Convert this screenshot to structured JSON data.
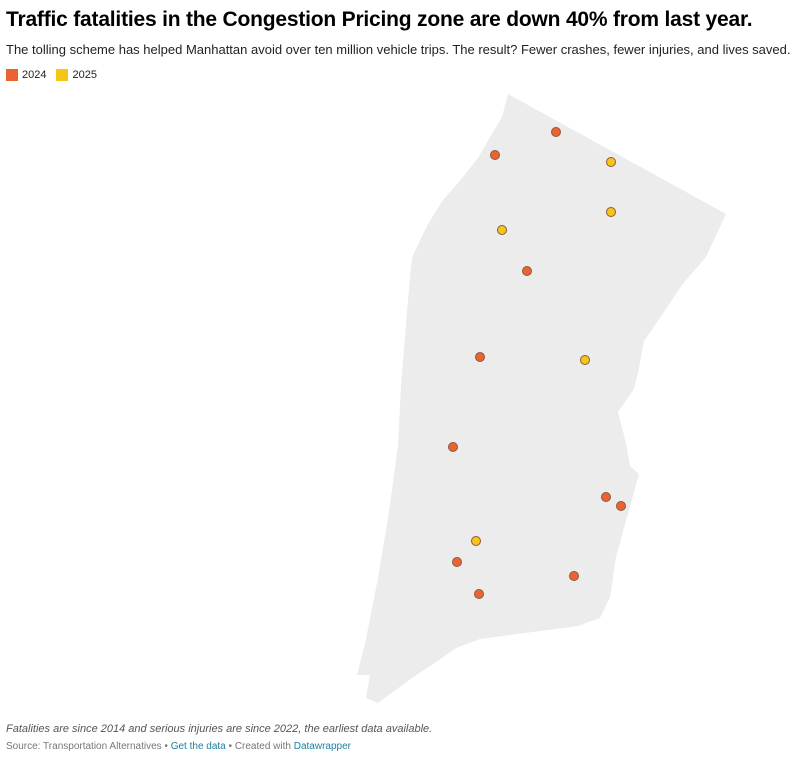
{
  "title": "Traffic fatalities in the Congestion Pricing zone are down 40% from last year.",
  "subtitle": "The tolling scheme has helped Manhattan avoid over ten million vehicle trips. The result? Fewer crashes, fewer injuries, and lives saved.",
  "legend": [
    {
      "label": "2024",
      "color": "#ec6333"
    },
    {
      "label": "2025",
      "color": "#f5c518"
    }
  ],
  "map": {
    "zone_color": "#ececec",
    "point_stroke": "#8a5a3a"
  },
  "notes": "Fatalities are since 2014 and serious injuries are since 2022, the earliest data available.",
  "footer": {
    "source_label": "Source: Transportation Alternatives",
    "separator": " • ",
    "get_data": "Get the data",
    "created_with": "Created with",
    "tool": "Datawrapper"
  }
}
